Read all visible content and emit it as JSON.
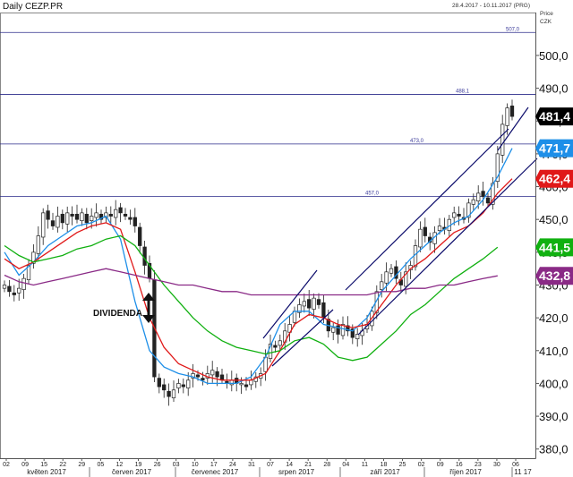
{
  "chart_data": {
    "type": "candlestick",
    "title": "Daily CEZP.PR",
    "range_text": "28.4.2017 - 10.11.2017 (PRG)",
    "price_label": "Price",
    "currency_label": "CZK",
    "y_ticks": [
      380.0,
      390.0,
      400.0,
      410.0,
      420.0,
      430.0,
      440.0,
      450.0,
      460.0,
      470.0,
      480.0,
      490.0,
      500.0
    ],
    "y_tick_labels": [
      "380,0",
      "390,0",
      "400,0",
      "410,0",
      "420,0",
      "430,0",
      "440,0",
      "450,0",
      "460,0",
      "470,0",
      "480,0",
      "490,0",
      "500,0"
    ],
    "ylim": [
      376,
      518
    ],
    "x_tick_labels": [
      "02",
      "09",
      "15",
      "22",
      "29",
      "05",
      "12",
      "19",
      "26",
      "03",
      "10",
      "17",
      "24",
      "31",
      "07",
      "14",
      "21",
      "28",
      "04",
      "11",
      "18",
      "25",
      "02",
      "09",
      "16",
      "23",
      "30",
      "06"
    ],
    "months": [
      "květen 2017",
      "červen 2017",
      "červenec 2017",
      "srpen 2017",
      "září 2017",
      "říjen 2017",
      "11 17"
    ],
    "horizontal_levels": [
      {
        "value": 507.0,
        "label": "507,0"
      },
      {
        "value": 488.1,
        "label": "488,1"
      },
      {
        "value": 473.0,
        "label": "473,0"
      },
      {
        "value": 457.0,
        "label": "457,0"
      }
    ],
    "price_badges": [
      {
        "value": 481.4,
        "label": "481,4",
        "color": "#000000"
      },
      {
        "value": 471.7,
        "label": "471,7",
        "color": "#1e8fe8"
      },
      {
        "value": 462.4,
        "label": "462,4",
        "color": "#e01818"
      },
      {
        "value": 441.5,
        "label": "441,5",
        "color": "#10b010"
      },
      {
        "value": 432.8,
        "label": "432,8",
        "color": "#8a2a86"
      }
    ],
    "annotation": "DIVIDENDA",
    "closes": [
      430,
      428,
      427,
      429,
      432,
      436,
      440,
      445,
      452,
      450,
      448,
      451,
      449,
      452,
      451,
      450,
      452,
      449,
      451,
      452,
      450,
      452,
      451,
      453,
      452,
      451,
      450,
      448,
      442,
      436,
      432,
      402,
      399,
      398,
      396,
      398,
      400,
      399,
      401,
      403,
      402,
      401,
      403,
      404,
      402,
      401,
      400,
      401,
      400,
      400,
      399,
      401,
      402,
      403,
      408,
      412,
      411,
      413,
      416,
      418,
      422,
      424,
      425,
      423,
      426,
      424,
      420,
      416,
      417,
      415,
      418,
      416,
      414,
      415,
      416,
      418,
      422,
      428,
      431,
      434,
      435,
      432,
      430,
      434,
      436,
      442,
      447,
      445,
      443,
      446,
      448,
      447,
      450,
      452,
      451,
      450,
      455,
      456,
      458,
      457,
      455,
      461,
      470,
      479,
      484,
      481.4
    ],
    "series": [
      {
        "name": "",
        "color": "#1e8fe8",
        "values": [
          [
            0,
            440
          ],
          [
            8,
            433
          ],
          [
            16,
            437
          ],
          [
            24,
            442
          ],
          [
            32,
            445
          ],
          [
            40,
            448
          ],
          [
            48,
            449
          ],
          [
            56,
            451
          ],
          [
            64,
            444
          ],
          [
            72,
            425
          ],
          [
            80,
            410
          ],
          [
            88,
            405
          ],
          [
            96,
            403
          ],
          [
            104,
            402
          ],
          [
            112,
            400
          ],
          [
            120,
            400
          ],
          [
            128,
            400
          ],
          [
            136,
            402
          ],
          [
            144,
            408
          ],
          [
            152,
            418
          ],
          [
            160,
            422
          ],
          [
            168,
            422
          ],
          [
            176,
            418
          ],
          [
            184,
            417
          ],
          [
            192,
            416
          ],
          [
            200,
            420
          ],
          [
            208,
            428
          ],
          [
            216,
            433
          ],
          [
            224,
            438
          ],
          [
            232,
            442
          ],
          [
            240,
            446
          ],
          [
            248,
            449
          ],
          [
            256,
            451
          ],
          [
            264,
            456
          ],
          [
            272,
            463
          ],
          [
            280,
            471.7
          ]
        ]
      },
      {
        "name": "",
        "color": "#e01818",
        "values": [
          [
            0,
            438
          ],
          [
            8,
            435
          ],
          [
            16,
            437
          ],
          [
            24,
            440
          ],
          [
            32,
            443
          ],
          [
            40,
            446
          ],
          [
            48,
            448
          ],
          [
            56,
            449
          ],
          [
            64,
            447
          ],
          [
            72,
            434
          ],
          [
            80,
            420
          ],
          [
            88,
            411
          ],
          [
            96,
            406
          ],
          [
            104,
            404
          ],
          [
            112,
            402
          ],
          [
            120,
            401
          ],
          [
            128,
            401
          ],
          [
            136,
            401
          ],
          [
            144,
            403
          ],
          [
            152,
            410
          ],
          [
            160,
            418
          ],
          [
            168,
            421
          ],
          [
            176,
            420
          ],
          [
            184,
            418
          ],
          [
            192,
            417
          ],
          [
            200,
            418
          ],
          [
            208,
            424
          ],
          [
            216,
            430
          ],
          [
            224,
            435
          ],
          [
            232,
            438
          ],
          [
            240,
            442
          ],
          [
            248,
            446
          ],
          [
            256,
            448
          ],
          [
            264,
            452
          ],
          [
            272,
            458
          ],
          [
            280,
            462.4
          ]
        ]
      },
      {
        "name": "",
        "color": "#10b010",
        "values": [
          [
            0,
            442
          ],
          [
            8,
            439
          ],
          [
            16,
            437
          ],
          [
            24,
            438
          ],
          [
            32,
            439
          ],
          [
            40,
            441
          ],
          [
            48,
            442
          ],
          [
            56,
            444
          ],
          [
            64,
            445
          ],
          [
            72,
            442
          ],
          [
            80,
            436
          ],
          [
            88,
            430
          ],
          [
            96,
            425
          ],
          [
            104,
            420
          ],
          [
            112,
            416
          ],
          [
            120,
            413
          ],
          [
            128,
            411
          ],
          [
            136,
            410
          ],
          [
            144,
            409
          ],
          [
            152,
            410
          ],
          [
            160,
            413
          ],
          [
            168,
            414
          ],
          [
            176,
            412
          ],
          [
            184,
            408
          ],
          [
            192,
            407
          ],
          [
            200,
            408
          ],
          [
            208,
            412
          ],
          [
            216,
            416
          ],
          [
            224,
            421
          ],
          [
            232,
            424
          ],
          [
            240,
            428
          ],
          [
            248,
            432
          ],
          [
            256,
            435
          ],
          [
            264,
            438
          ],
          [
            272,
            441.5
          ]
        ]
      },
      {
        "name": "",
        "color": "#8a2a86",
        "values": [
          [
            0,
            433
          ],
          [
            8,
            431
          ],
          [
            16,
            430
          ],
          [
            24,
            431
          ],
          [
            32,
            432
          ],
          [
            40,
            433
          ],
          [
            48,
            434
          ],
          [
            56,
            435
          ],
          [
            64,
            434
          ],
          [
            72,
            433
          ],
          [
            80,
            432
          ],
          [
            88,
            431
          ],
          [
            96,
            430
          ],
          [
            104,
            430
          ],
          [
            112,
            429
          ],
          [
            120,
            428
          ],
          [
            128,
            428
          ],
          [
            136,
            427
          ],
          [
            144,
            427
          ],
          [
            152,
            427
          ],
          [
            160,
            427
          ],
          [
            168,
            427
          ],
          [
            176,
            427
          ],
          [
            184,
            427
          ],
          [
            192,
            427
          ],
          [
            200,
            427
          ],
          [
            208,
            428
          ],
          [
            216,
            428
          ],
          [
            224,
            429
          ],
          [
            232,
            429
          ],
          [
            240,
            430
          ],
          [
            248,
            430
          ],
          [
            256,
            431
          ],
          [
            264,
            432
          ],
          [
            272,
            432.8
          ]
        ]
      }
    ],
    "trendlines": [
      {
        "color": "#0a0a6a",
        "points": [
          [
            294,
            378
          ],
          [
            354,
            302
          ]
        ]
      },
      {
        "color": "#0a0a6a",
        "points": [
          [
            386,
            324
          ],
          [
            568,
            144
          ]
        ]
      },
      {
        "color": "#0a0a6a",
        "points": [
          [
            400,
            374
          ],
          [
            600,
            177
          ]
        ]
      },
      {
        "color": "#0a0a6a",
        "points": [
          [
            304,
            409
          ],
          [
            372,
            346
          ]
        ]
      },
      {
        "color": "#0a0a6a",
        "points": [
          [
            556,
            168
          ],
          [
            590,
            120
          ]
        ]
      }
    ]
  }
}
